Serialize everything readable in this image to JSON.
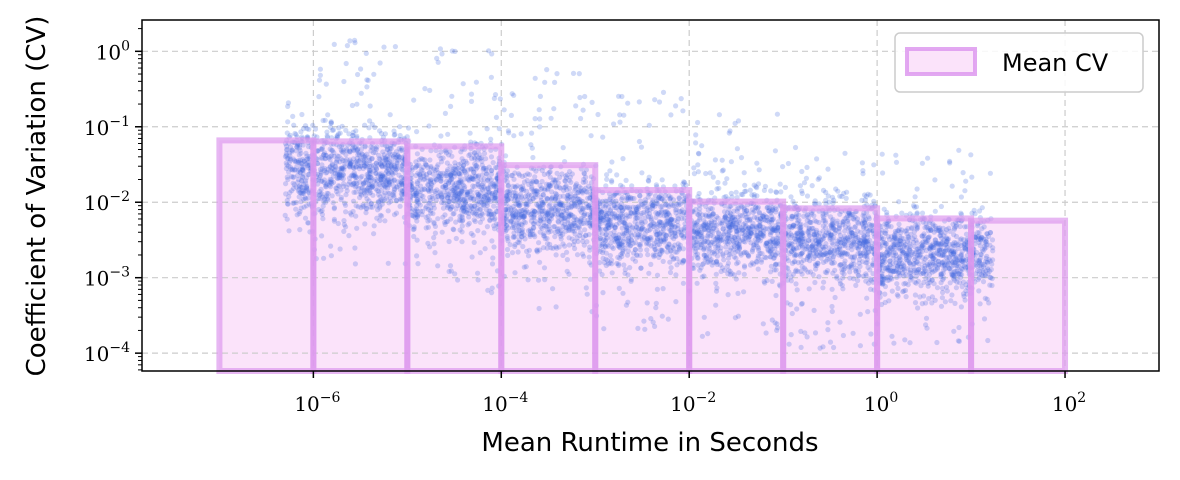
{
  "chart_data": {
    "type": "scatter",
    "xlabel": "Mean Runtime in Seconds",
    "ylabel": "Coefficient of Variation (CV)",
    "x_scale": "log",
    "y_scale": "log",
    "xlim": [
      1.5e-08,
      1000
    ],
    "ylim": [
      5.8e-05,
      2.6
    ],
    "grid": true,
    "legend": {
      "placement": "top-right",
      "entries": [
        "Mean CV"
      ]
    },
    "x_ticks": [
      {
        "mantissa": "10",
        "exp": "−6",
        "value": 1e-06
      },
      {
        "mantissa": "10",
        "exp": "−4",
        "value": 0.0001
      },
      {
        "mantissa": "10",
        "exp": "−2",
        "value": 0.01
      },
      {
        "mantissa": "10",
        "exp": "0",
        "value": 1
      },
      {
        "mantissa": "10",
        "exp": "2",
        "value": 100
      }
    ],
    "y_ticks": [
      {
        "mantissa": "10",
        "exp": "−4",
        "value": 0.0001
      },
      {
        "mantissa": "10",
        "exp": "−3",
        "value": 0.001
      },
      {
        "mantissa": "10",
        "exp": "−2",
        "value": 0.01
      },
      {
        "mantissa": "10",
        "exp": "−1",
        "value": 0.1
      },
      {
        "mantissa": "10",
        "exp": "0",
        "value": 1
      }
    ],
    "mean_cv_bins": [
      {
        "x_start": 1e-07,
        "x_end": 1e-06,
        "value": 0.066
      },
      {
        "x_start": 1e-06,
        "x_end": 1e-05,
        "value": 0.064
      },
      {
        "x_start": 1e-05,
        "x_end": 0.0001,
        "value": 0.055
      },
      {
        "x_start": 0.0001,
        "x_end": 0.001,
        "value": 0.031
      },
      {
        "x_start": 0.001,
        "x_end": 0.01,
        "value": 0.0145
      },
      {
        "x_start": 0.01,
        "x_end": 0.1,
        "value": 0.0102
      },
      {
        "x_start": 0.1,
        "x_end": 1,
        "value": 0.0083
      },
      {
        "x_start": 1,
        "x_end": 10,
        "value": 0.0061
      },
      {
        "x_start": 10,
        "x_end": 100,
        "value": 0.0057
      }
    ],
    "scatter_density": [
      {
        "x_start": 5e-07,
        "x_end": 1e-06,
        "cv_low": 0.004,
        "cv_high": 0.25,
        "cv_center": 0.03
      },
      {
        "x_start": 1e-06,
        "x_end": 1e-05,
        "cv_low": 0.0015,
        "cv_high": 1.5,
        "cv_center": 0.025
      },
      {
        "x_start": 1e-05,
        "x_end": 0.0001,
        "cv_low": 0.0006,
        "cv_high": 1.1,
        "cv_center": 0.015
      },
      {
        "x_start": 0.0001,
        "x_end": 0.001,
        "cv_low": 0.0003,
        "cv_high": 0.6,
        "cv_center": 0.008
      },
      {
        "x_start": 0.001,
        "x_end": 0.01,
        "cv_low": 0.0002,
        "cv_high": 0.3,
        "cv_center": 0.005
      },
      {
        "x_start": 0.01,
        "x_end": 0.1,
        "cv_low": 0.00015,
        "cv_high": 0.15,
        "cv_center": 0.004
      },
      {
        "x_start": 0.1,
        "x_end": 1,
        "cv_low": 0.0001,
        "cv_high": 0.06,
        "cv_center": 0.003
      },
      {
        "x_start": 1,
        "x_end": 17,
        "cv_low": 0.00012,
        "cv_high": 0.05,
        "cv_center": 0.002
      }
    ],
    "colors": {
      "points": "#4169e1",
      "bar_fill": "#fbe3fa",
      "bar_edge": "#dd99ee",
      "grid": "#cccccc"
    }
  }
}
